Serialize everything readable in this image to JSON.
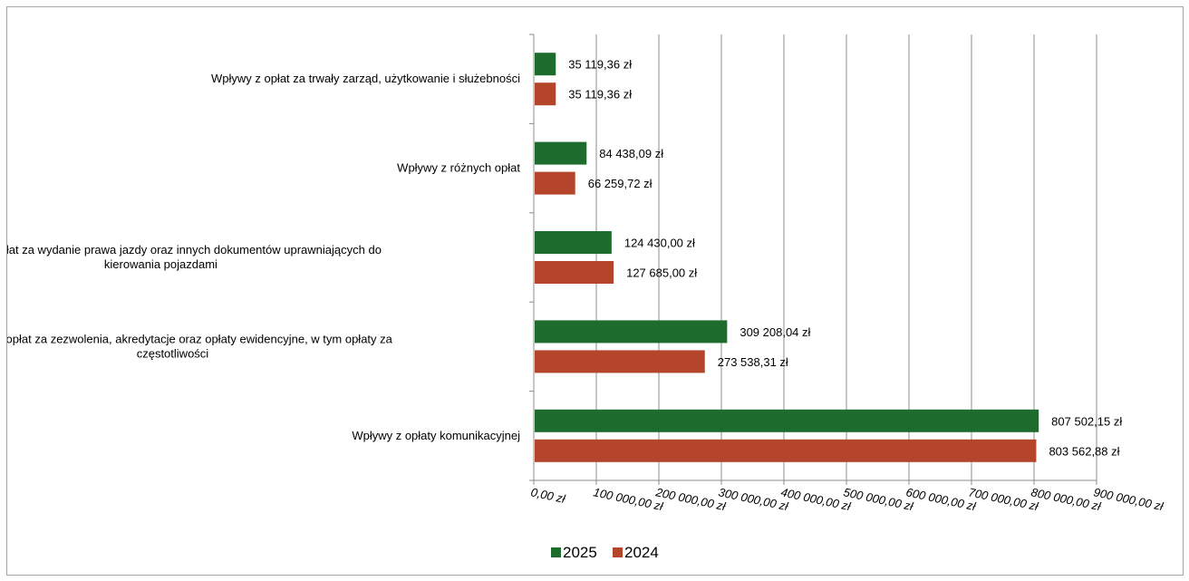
{
  "chart_data": {
    "type": "bar",
    "orientation": "horizontal",
    "categories": [
      "Wpływy z opłat za trwały zarząd, użytkowanie i służebności",
      "Wpływy z różnych opłat",
      "Wpływy z opłat za wydanie prawa jazdy oraz innych dokumentów uprawniających do kierowania pojazdami",
      "Wpływy z opłat za zezwolenia, akredytacje oraz opłaty ewidencyjne, w tym opłaty za częstotliwości",
      "Wpływy z opłaty komunikacyjnej"
    ],
    "category_lines": [
      [
        "Wpływy z opłat za trwały zarząd, użytkowanie i służebności"
      ],
      [
        "Wpływy z różnych opłat"
      ],
      [
        "Wpływy z opłat za wydanie prawa jazdy oraz innych dokumentów uprawniających do",
        "kierowania pojazdami"
      ],
      [
        "Wpływy z opłat za zezwolenia, akredytacje oraz opłaty ewidencyjne, w tym opłaty za",
        "częstotliwości"
      ],
      [
        "Wpływy z opłaty komunikacyjnej"
      ]
    ],
    "series": [
      {
        "name": "2025",
        "color": "#1e6b2e",
        "values": [
          35119.36,
          84438.09,
          124430.0,
          309208.04,
          807502.15
        ],
        "labels": [
          "35 119,36 zł",
          "84 438,09 zł",
          "124 430,00 zł",
          "309 208,04 zł",
          "807 502,15 zł"
        ]
      },
      {
        "name": "2024",
        "color": "#b5452a",
        "values": [
          35119.36,
          66259.72,
          127685.0,
          273538.31,
          803562.88
        ],
        "labels": [
          "35 119,36 zł",
          "66 259,72 zł",
          "127 685,00 zł",
          "273 538,31 zł",
          "803 562,88 zł"
        ]
      }
    ],
    "xlim": [
      0,
      900000
    ],
    "x_ticks": [
      0,
      100000,
      200000,
      300000,
      400000,
      500000,
      600000,
      700000,
      800000,
      900000
    ],
    "x_tick_labels": [
      "0,00 zł",
      "100 000,00 zł",
      "200 000,00 zł",
      "300 000,00 zł",
      "400 000,00 zł",
      "500 000,00 zł",
      "600 000,00 zł",
      "700 000,00 zł",
      "800 000,00 zł",
      "900 000,00 zł"
    ],
    "grid": "vertical",
    "legend": "bottom-center",
    "title": "",
    "xlabel": "",
    "ylabel": ""
  }
}
